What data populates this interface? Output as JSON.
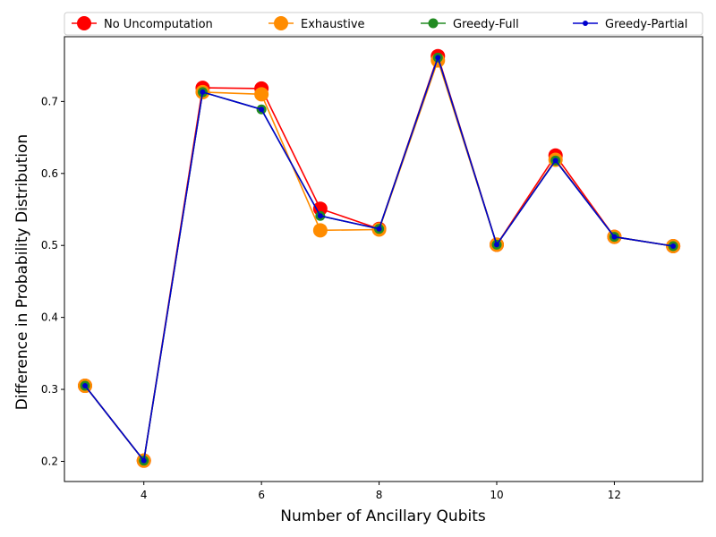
{
  "chart_data": {
    "type": "line",
    "title": "",
    "xlabel": "Number of Ancillary Qubits",
    "ylabel": "Difference in Probability Distribution",
    "x": [
      3,
      4,
      5,
      6,
      7,
      8,
      9,
      10,
      11,
      12,
      13
    ],
    "xlim": [
      2.65,
      13.5
    ],
    "ylim": [
      0.172,
      0.79
    ],
    "xticks": [
      4,
      6,
      8,
      10,
      12
    ],
    "yticks": [
      0.2,
      0.3,
      0.4,
      0.5,
      0.6,
      0.7
    ],
    "grid": false,
    "legend_position": "top",
    "series": [
      {
        "name": "No Uncomputation",
        "color": "#ff0000",
        "marker_size": "large",
        "values": [
          0.305,
          0.201,
          0.719,
          0.718,
          0.551,
          0.523,
          0.763,
          0.501,
          0.625,
          0.512,
          0.499
        ]
      },
      {
        "name": "Exhaustive",
        "color": "#ff8c00",
        "marker_size": "large",
        "values": [
          0.305,
          0.201,
          0.713,
          0.71,
          0.521,
          0.522,
          0.757,
          0.501,
          0.619,
          0.512,
          0.499
        ]
      },
      {
        "name": "Greedy-Full",
        "color": "#228b22",
        "marker_size": "medium",
        "values": [
          0.305,
          0.201,
          0.713,
          0.689,
          0.541,
          0.523,
          0.761,
          0.501,
          0.618,
          0.512,
          0.499
        ]
      },
      {
        "name": "Greedy-Partial",
        "color": "#0000cd",
        "marker_size": "small",
        "values": [
          0.305,
          0.201,
          0.713,
          0.689,
          0.541,
          0.523,
          0.761,
          0.501,
          0.618,
          0.512,
          0.499
        ]
      }
    ]
  }
}
